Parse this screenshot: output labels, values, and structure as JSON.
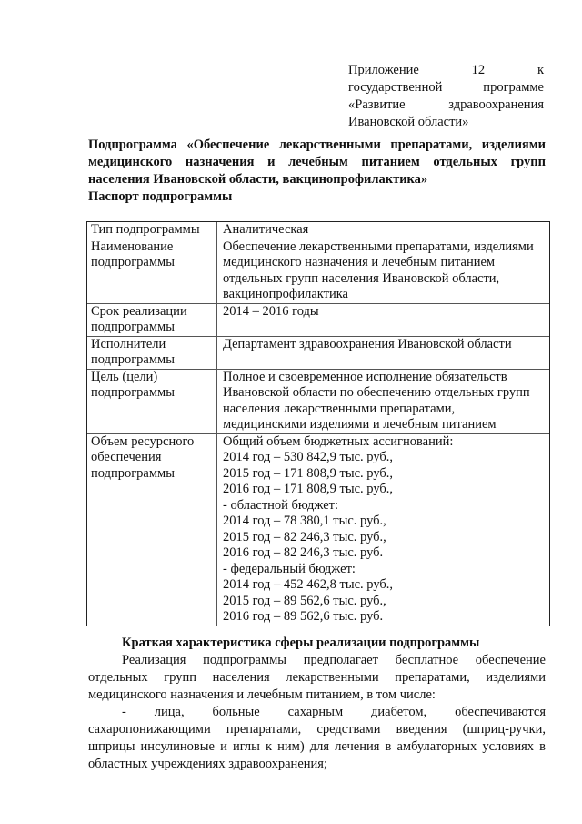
{
  "appendix": {
    "lines": [
      "Приложение 12 к",
      "государственной программе",
      "«Развитие здравоохранения",
      "Ивановской области»"
    ]
  },
  "heading": {
    "lines": [
      "Подпрограмма «Обеспечение лекарственными препаратами, изделиями",
      "медицинского назначения и лечебным питанием отдельных групп",
      "населения Ивановской области, вакцинопрофилактика»",
      "Паспорт подпрограммы"
    ]
  },
  "passport": {
    "rows": [
      {
        "label": [
          "Тип подпрограммы"
        ],
        "value": [
          "Аналитическая"
        ]
      },
      {
        "label": [
          "Наименование",
          "подпрограммы"
        ],
        "value": [
          "Обеспечение лекарственными препаратами, изделиями",
          "медицинского назначения и лечебным питанием",
          "отдельных групп населения Ивановской области,",
          "вакцинопрофилактика"
        ]
      },
      {
        "label": [
          "Срок реализации",
          "подпрограммы"
        ],
        "value": [
          "2014 – 2016 годы"
        ]
      },
      {
        "label": [
          "Исполнители",
          "подпрограммы"
        ],
        "value": [
          "Департамент здравоохранения Ивановской области"
        ]
      },
      {
        "label": [
          "Цель (цели)",
          "подпрограммы"
        ],
        "value": [
          "Полное и своевременное исполнение обязательств",
          "Ивановской области по обеспечению отдельных групп",
          "населения лекарственными препаратами,",
          "медицинскими изделиями и лечебным питанием"
        ]
      },
      {
        "label": [
          "Объем ресурсного",
          "обеспечения",
          "подпрограммы"
        ],
        "value": [
          "Общий объем бюджетных ассигнований:",
          "2014 год – 530 842,9 тыс. руб.,",
          "2015 год – 171 808,9 тыс. руб.,",
          "2016 год – 171 808,9 тыс. руб.,",
          "- областной бюджет:",
          "2014 год – 78 380,1 тыс. руб.,",
          "2015 год – 82 246,3 тыс. руб.,",
          "2016 год – 82 246,3 тыс. руб.",
          "- федеральный бюджет:",
          "2014 год – 452 462,8 тыс. руб.,",
          "2015 год – 89 562,6 тыс. руб.,",
          "2016 год – 89 562,6 тыс. руб."
        ]
      }
    ]
  },
  "section": {
    "title": "Краткая характеристика сферы реализации подпрограммы",
    "lines": [
      {
        "text": "Реализация подпрограммы предполагает бесплатное обеспечение",
        "indent": true,
        "justify": true
      },
      {
        "text": "отдельных групп населения лекарственными препаратами, изделиями",
        "indent": false,
        "justify": true
      },
      {
        "text": "медицинского назначения и лечебным питанием, в том числе:",
        "indent": false,
        "justify": false
      },
      {
        "text": "- лица, больные сахарным диабетом, обеспечиваются",
        "indent": true,
        "justify": true
      },
      {
        "text": "сахаропонижающими препаратами, средствами введения (шприц-ручки,",
        "indent": false,
        "justify": true
      },
      {
        "text": "шприцы инсулиновые и иглы к ним) для лечения в амбулаторных условиях в",
        "indent": false,
        "justify": true
      },
      {
        "text": "областных учреждениях здравоохранения;",
        "indent": false,
        "justify": false
      }
    ]
  }
}
